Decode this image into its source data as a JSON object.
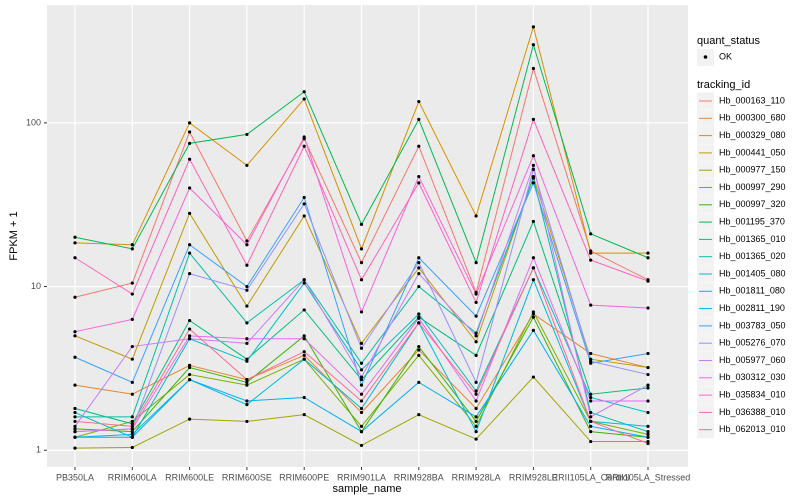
{
  "chart_data": {
    "type": "line",
    "x_label": "sample_name",
    "y_label": "FPKM + 1",
    "y_log": true,
    "grid": true,
    "background": "#EBEBEB",
    "point_color": "#000000",
    "legend_position": "right",
    "quant_status_title": "quant_status",
    "quant_status": [
      "OK"
    ],
    "legend_title": "tracking_id",
    "categories": [
      "PB350LA",
      "RRIM600LA",
      "RRIM600LE",
      "RRIM600SE",
      "RRIM600PE",
      "RRIM901LA",
      "RRIM928BA",
      "RRIM928LA",
      "RRIM928LE",
      "RRII105LA_Control",
      "RRII105LA_Stressed"
    ],
    "ylim": [
      0.79,
      525
    ],
    "yticks": [
      1,
      10,
      100
    ],
    "series": [
      {
        "name": "Hb_000163_110",
        "color": "#F8766D",
        "values": [
          8.6,
          10.5,
          88,
          19,
          80,
          14,
          72,
          9.2,
          215,
          16.5,
          11
        ]
      },
      {
        "name": "Hb_000300_680",
        "color": "#EA8331",
        "values": [
          2.5,
          2.2,
          3.3,
          2.7,
          3.8,
          1.7,
          4.1,
          1.8,
          6.8,
          3.9,
          3.2
        ]
      },
      {
        "name": "Hb_000329_080",
        "color": "#D89000",
        "values": [
          18.5,
          18,
          100,
          55,
          140,
          17,
          135,
          27,
          386,
          16,
          16
        ]
      },
      {
        "name": "Hb_000441_050",
        "color": "#C09B00",
        "values": [
          5,
          3.6,
          28,
          7.6,
          27,
          4.5,
          13,
          4.6,
          47,
          3.6,
          3.2
        ]
      },
      {
        "name": "Hb_000977_150",
        "color": "#A3A500",
        "values": [
          1.03,
          1.04,
          1.55,
          1.5,
          1.65,
          1.07,
          1.65,
          1.17,
          2.8,
          1.13,
          1.13
        ]
      },
      {
        "name": "Hb_000997_290",
        "color": "#7CAE00",
        "values": [
          1.2,
          1.5,
          2.9,
          2.5,
          3.6,
          1.4,
          3.8,
          1.4,
          7,
          1.5,
          1.25
        ]
      },
      {
        "name": "Hb_000997_320",
        "color": "#39B600",
        "values": [
          1.35,
          1.3,
          3.2,
          2.6,
          5,
          1.3,
          4.3,
          1.5,
          6.5,
          1.3,
          1.2
        ]
      },
      {
        "name": "Hb_001195_370",
        "color": "#00BB4E",
        "values": [
          20,
          17,
          75,
          85,
          155,
          24,
          105,
          14,
          300,
          21,
          15
        ]
      },
      {
        "name": "Hb_001365_010",
        "color": "#00BF7D",
        "values": [
          1.8,
          1.45,
          6.2,
          3.6,
          7.2,
          2.7,
          6.5,
          3.8,
          25,
          2.2,
          2.4
        ]
      },
      {
        "name": "Hb_001365_020",
        "color": "#00C1A3",
        "values": [
          1.6,
          1.6,
          16,
          6,
          11,
          3.4,
          10,
          5.2,
          46,
          1.7,
          1.3
        ]
      },
      {
        "name": "Hb_001405_080",
        "color": "#00BFC4",
        "values": [
          1.7,
          1.2,
          4.8,
          3.5,
          10.5,
          3.1,
          6.8,
          2.3,
          13,
          2.1,
          1.7
        ]
      },
      {
        "name": "Hb_001811_080",
        "color": "#00BAE0",
        "values": [
          1.2,
          1.25,
          2.7,
          1.9,
          3.6,
          1.8,
          6,
          1.3,
          11,
          1.5,
          1.4
        ]
      },
      {
        "name": "Hb_002811_190",
        "color": "#00B0F6",
        "values": [
          1.2,
          1.2,
          2.7,
          2,
          2.1,
          1.3,
          2.6,
          1.6,
          5.4,
          1.4,
          1.2
        ]
      },
      {
        "name": "Hb_003783_050",
        "color": "#35A2FF",
        "values": [
          3.7,
          2.6,
          18,
          10,
          35,
          2.5,
          15,
          6.6,
          43,
          3.4,
          3.9
        ]
      },
      {
        "name": "Hb_005276_070",
        "color": "#9590FF",
        "values": [
          1.3,
          1.35,
          12,
          9.5,
          32,
          4.2,
          14,
          2.6,
          52,
          3.5,
          2.9
        ]
      },
      {
        "name": "Hb_005977_060",
        "color": "#C77CFF",
        "values": [
          1.4,
          4.3,
          4.8,
          4.5,
          11,
          2.8,
          12,
          5,
          55,
          1.6,
          2.5
        ]
      },
      {
        "name": "Hb_030312_030",
        "color": "#E76BF3",
        "values": [
          1.3,
          1.35,
          5,
          4.8,
          4.8,
          2.2,
          6.4,
          2,
          15,
          2,
          2
        ]
      },
      {
        "name": "Hb_035834_010",
        "color": "#FA62DB",
        "values": [
          5.3,
          6.3,
          40,
          18,
          82,
          7,
          47,
          9,
          63,
          7.7,
          7.4
        ]
      },
      {
        "name": "Hb_036388_010",
        "color": "#FF62BC",
        "values": [
          15,
          9,
          60,
          13.5,
          72,
          11,
          43,
          8,
          105,
          14.5,
          10.8
        ]
      },
      {
        "name": "Hb_062013_010",
        "color": "#FF6C91",
        "values": [
          1.5,
          1.4,
          5.5,
          2.7,
          4,
          2,
          6,
          2.2,
          13,
          1.5,
          1.1
        ]
      }
    ]
  }
}
